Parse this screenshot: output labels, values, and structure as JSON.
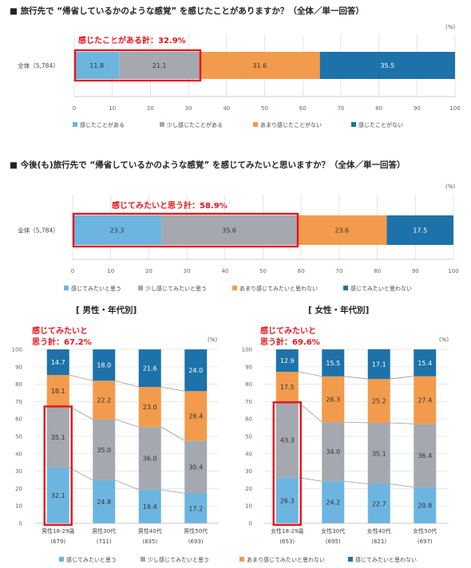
{
  "colors": {
    "c1": "#6cb5e1",
    "c2": "#a4a9af",
    "c3": "#f29b4c",
    "c4": "#1d72a9",
    "highlight": "#e8141b"
  },
  "unit": "(%)",
  "chart_data": [
    {
      "type": "bar",
      "orientation": "horizontal-stacked",
      "title": "■ 旅行先で “帰省しているかのような感覚” を感じたことがありますか？（全体／単一回答）",
      "categories": [
        "全体（5,784）"
      ],
      "series": [
        {
          "name": "感じたことがある",
          "values": [
            11.8
          ]
        },
        {
          "name": "少し感じたことがある",
          "values": [
            21.1
          ]
        },
        {
          "name": "あまり感じたことがない",
          "values": [
            31.6
          ]
        },
        {
          "name": "感じたことがない",
          "values": [
            35.5
          ]
        }
      ],
      "xlim": [
        0,
        100
      ],
      "ticks": [
        "0",
        "10",
        "20",
        "30",
        "40",
        "50",
        "60",
        "70",
        "80",
        "90",
        "100"
      ],
      "highlight_label": "感じたことがある計：32.9%",
      "legend": "bottom"
    },
    {
      "type": "bar",
      "orientation": "horizontal-stacked",
      "title": "■ 今後(も)旅行先で “帰省しているかのような感覚” を感じてみたいと思いますか？（全体／単一回答）",
      "categories": [
        "全体（5,784）"
      ],
      "series": [
        {
          "name": "感じてみたいと思う",
          "values": [
            23.3
          ]
        },
        {
          "name": "少し感じてみたいと思う",
          "values": [
            35.6
          ]
        },
        {
          "name": "あまり感じてみたいと思わない",
          "values": [
            23.6
          ]
        },
        {
          "name": "感じてみたいと思わない",
          "values": [
            17.5
          ]
        }
      ],
      "xlim": [
        0,
        100
      ],
      "ticks": [
        "0",
        "10",
        "20",
        "30",
        "40",
        "50",
        "60",
        "70",
        "80",
        "90",
        "100"
      ],
      "highlight_label": "感じてみたいと思う計：58.9%",
      "legend": "bottom"
    },
    {
      "type": "bar",
      "orientation": "vertical-stacked",
      "title": "[ 男性・年代別]",
      "categories": [
        "男性18-29歳",
        "男性30代",
        "男性40代",
        "男性50代"
      ],
      "category_n": [
        "(679)",
        "(711)",
        "(835)",
        "(693)"
      ],
      "series": [
        {
          "name": "感じてみたいと思う",
          "values": [
            32.1,
            24.8,
            19.4,
            17.2
          ]
        },
        {
          "name": "少し感じてみたいと思う",
          "values": [
            35.1,
            35.0,
            36.0,
            30.4
          ]
        },
        {
          "name": "あまり感じてみたいと思わない",
          "values": [
            18.1,
            22.2,
            23.0,
            28.4
          ]
        },
        {
          "name": "感じてみたいと思わない",
          "values": [
            14.7,
            18.0,
            21.6,
            24.0
          ]
        }
      ],
      "ylim": [
        0,
        100
      ],
      "ticks": [
        "0",
        "10",
        "20",
        "30",
        "40",
        "50",
        "60",
        "70",
        "80",
        "90",
        "100"
      ],
      "highlight_label": [
        "感じてみたいと",
        "思う計：67.2%"
      ],
      "legend": "bottom"
    },
    {
      "type": "bar",
      "orientation": "vertical-stacked",
      "title": "[ 女性・年代別]",
      "categories": [
        "女性18-29歳",
        "女性30代",
        "女性40代",
        "女性50代"
      ],
      "category_n": [
        "(653)",
        "(695)",
        "(821)",
        "(697)"
      ],
      "series": [
        {
          "name": "感じてみたいと思う",
          "values": [
            26.3,
            24.2,
            22.7,
            20.8
          ]
        },
        {
          "name": "少し感じてみたいと思う",
          "values": [
            43.3,
            34.0,
            35.1,
            36.4
          ]
        },
        {
          "name": "あまり感じてみたいと思わない",
          "values": [
            17.5,
            26.3,
            25.2,
            27.4
          ]
        },
        {
          "name": "感じてみたいと思わない",
          "values": [
            12.9,
            15.5,
            17.1,
            15.4
          ]
        }
      ],
      "ylim": [
        0,
        100
      ],
      "ticks": [
        "0",
        "10",
        "20",
        "30",
        "40",
        "50",
        "60",
        "70",
        "80",
        "90",
        "100"
      ],
      "highlight_label": [
        "感じてみたいと",
        "思う計：69.6%"
      ],
      "legend": "bottom"
    }
  ]
}
